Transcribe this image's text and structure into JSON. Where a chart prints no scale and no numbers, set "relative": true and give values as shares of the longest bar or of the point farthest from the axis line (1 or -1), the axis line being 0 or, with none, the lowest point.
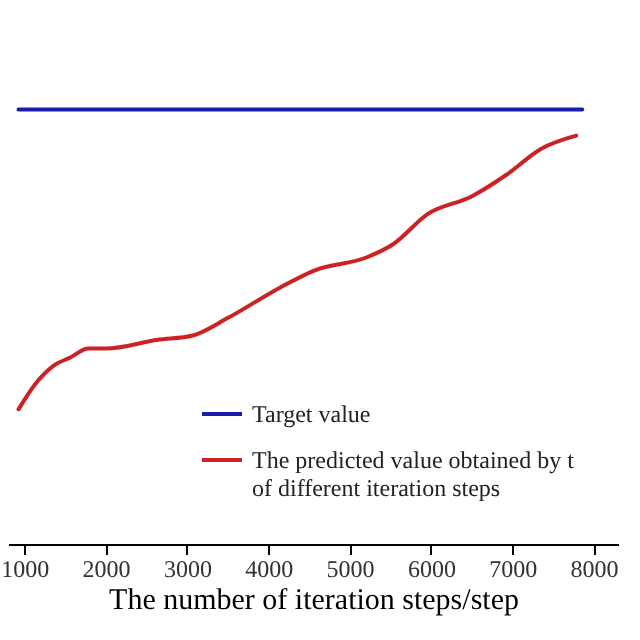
{
  "chart_data": {
    "type": "line",
    "relative": true,
    "xlabel": "The number of iteration steps/step",
    "series": [
      {
        "name": "Target value",
        "color": "#1c1caa",
        "x": [
          930,
          7860
        ],
        "values": [
          1,
          1
        ]
      },
      {
        "name": "The predicted value obtained by t of different iteration steps",
        "color": "#cc2222",
        "x": [
          929,
          1143,
          1358,
          1572,
          1786,
          2000,
          2642,
          3071,
          3500,
          4143,
          4572,
          5214,
          5535,
          5963,
          6499,
          6929,
          7357,
          7786
        ],
        "values": [
          0.31,
          0.37,
          0.41,
          0.43,
          0.45,
          0.45,
          0.47,
          0.48,
          0.52,
          0.59,
          0.63,
          0.66,
          0.69,
          0.76,
          0.8,
          0.85,
          0.91,
          0.94
        ]
      }
    ],
    "xlim": [
      800,
      8300
    ],
    "xticks": [
      1000,
      2000,
      3000,
      4000,
      5000,
      6000,
      7000,
      8000
    ],
    "grid": false,
    "legend": "bottom right",
    "marker": "none",
    "line_style": "solid"
  }
}
